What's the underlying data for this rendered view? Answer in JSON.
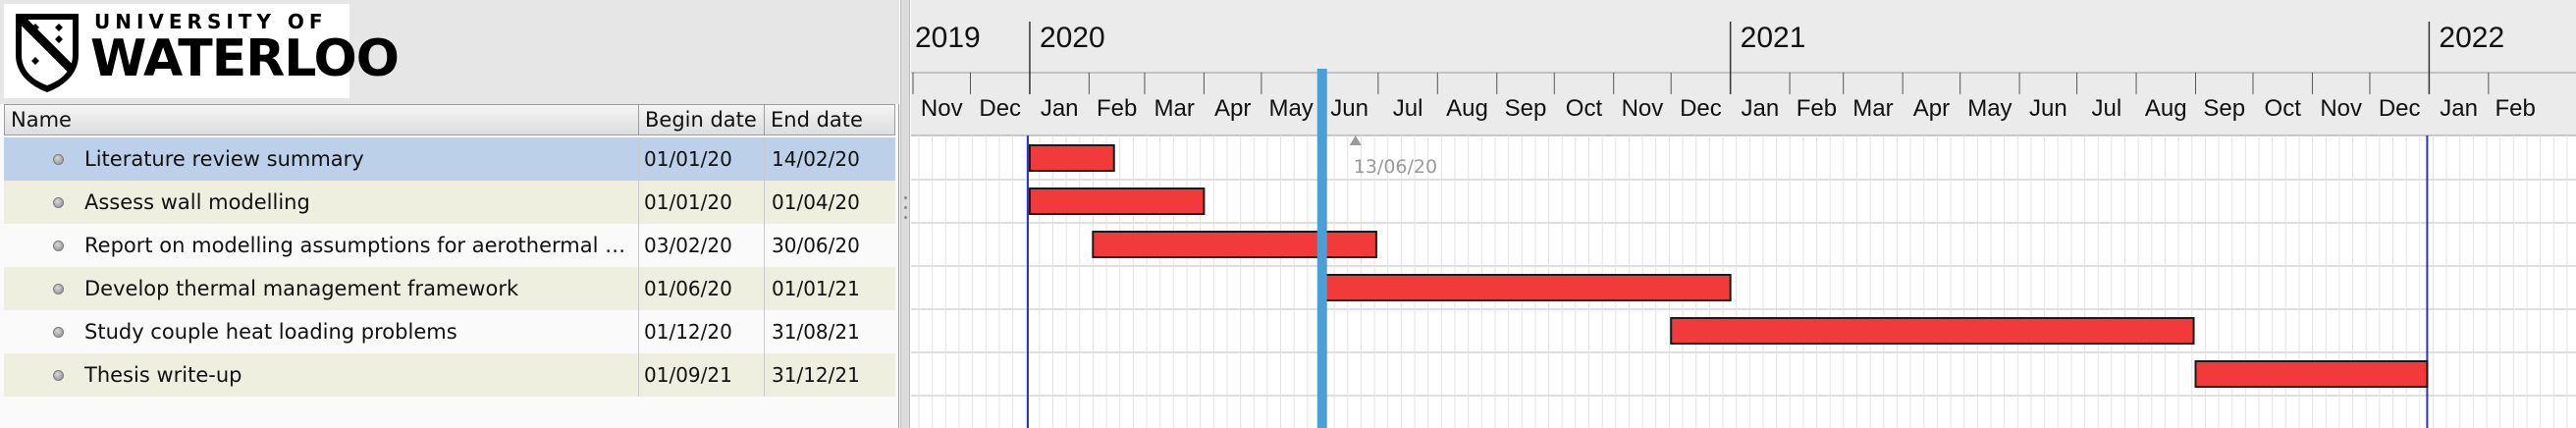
{
  "logo": {
    "top_text": "UNIVERSITY OF",
    "main_text": "WATERLOO",
    "crest_icon": "university-crest-icon"
  },
  "columns": {
    "name": "Name",
    "begin": "Begin date",
    "end": "End date"
  },
  "tasks": [
    {
      "name": "Literature review summary",
      "begin": "01/01/20",
      "end": "14/02/20",
      "start_iso": "2020-01-01",
      "end_iso": "2020-02-14",
      "selected": true
    },
    {
      "name": "Assess wall modelling",
      "begin": "01/01/20",
      "end": "01/04/20",
      "start_iso": "2020-01-01",
      "end_iso": "2020-04-01",
      "selected": false
    },
    {
      "name": "Report on modelling assumptions for aerothermal heat…",
      "begin": "03/02/20",
      "end": "30/06/20",
      "start_iso": "2020-02-03",
      "end_iso": "2020-06-30",
      "selected": false
    },
    {
      "name": "Develop thermal management framework",
      "begin": "01/06/20",
      "end": "01/01/21",
      "start_iso": "2020-06-01",
      "end_iso": "2021-01-01",
      "selected": false
    },
    {
      "name": "Study couple heat loading problems",
      "begin": "01/12/20",
      "end": "31/08/21",
      "start_iso": "2020-12-01",
      "end_iso": "2021-08-31",
      "selected": false
    },
    {
      "name": "Thesis write-up",
      "begin": "01/09/21",
      "end": "31/12/21",
      "start_iso": "2021-09-01",
      "end_iso": "2021-12-31",
      "selected": false
    }
  ],
  "timeline": {
    "years": [
      "2019",
      "2020",
      "2021",
      "2022"
    ],
    "months": [
      "Nov",
      "Dec",
      "Jan",
      "Feb",
      "Mar",
      "Apr",
      "May",
      "Jun",
      "Jul",
      "Aug",
      "Sep",
      "Oct",
      "Nov",
      "Dec",
      "Jan",
      "Feb",
      "Mar",
      "Apr",
      "May",
      "Jun",
      "Jul",
      "Aug",
      "Sep",
      "Oct",
      "Nov",
      "Dec",
      "Jan",
      "Feb"
    ],
    "today_label": "13/06/20",
    "today_iso": "2020-06-13",
    "milestone_lines_iso": [
      "2020-01-01",
      "2022-01-01"
    ]
  },
  "colors": {
    "bar_fill": "#f23a3a",
    "bar_stroke": "#1a1a1a",
    "today_line": "#4a9fd5",
    "milestone_line": "#2f2fc8",
    "selected_row": "#bcd0ea",
    "alt_row": "#efefe0"
  }
}
